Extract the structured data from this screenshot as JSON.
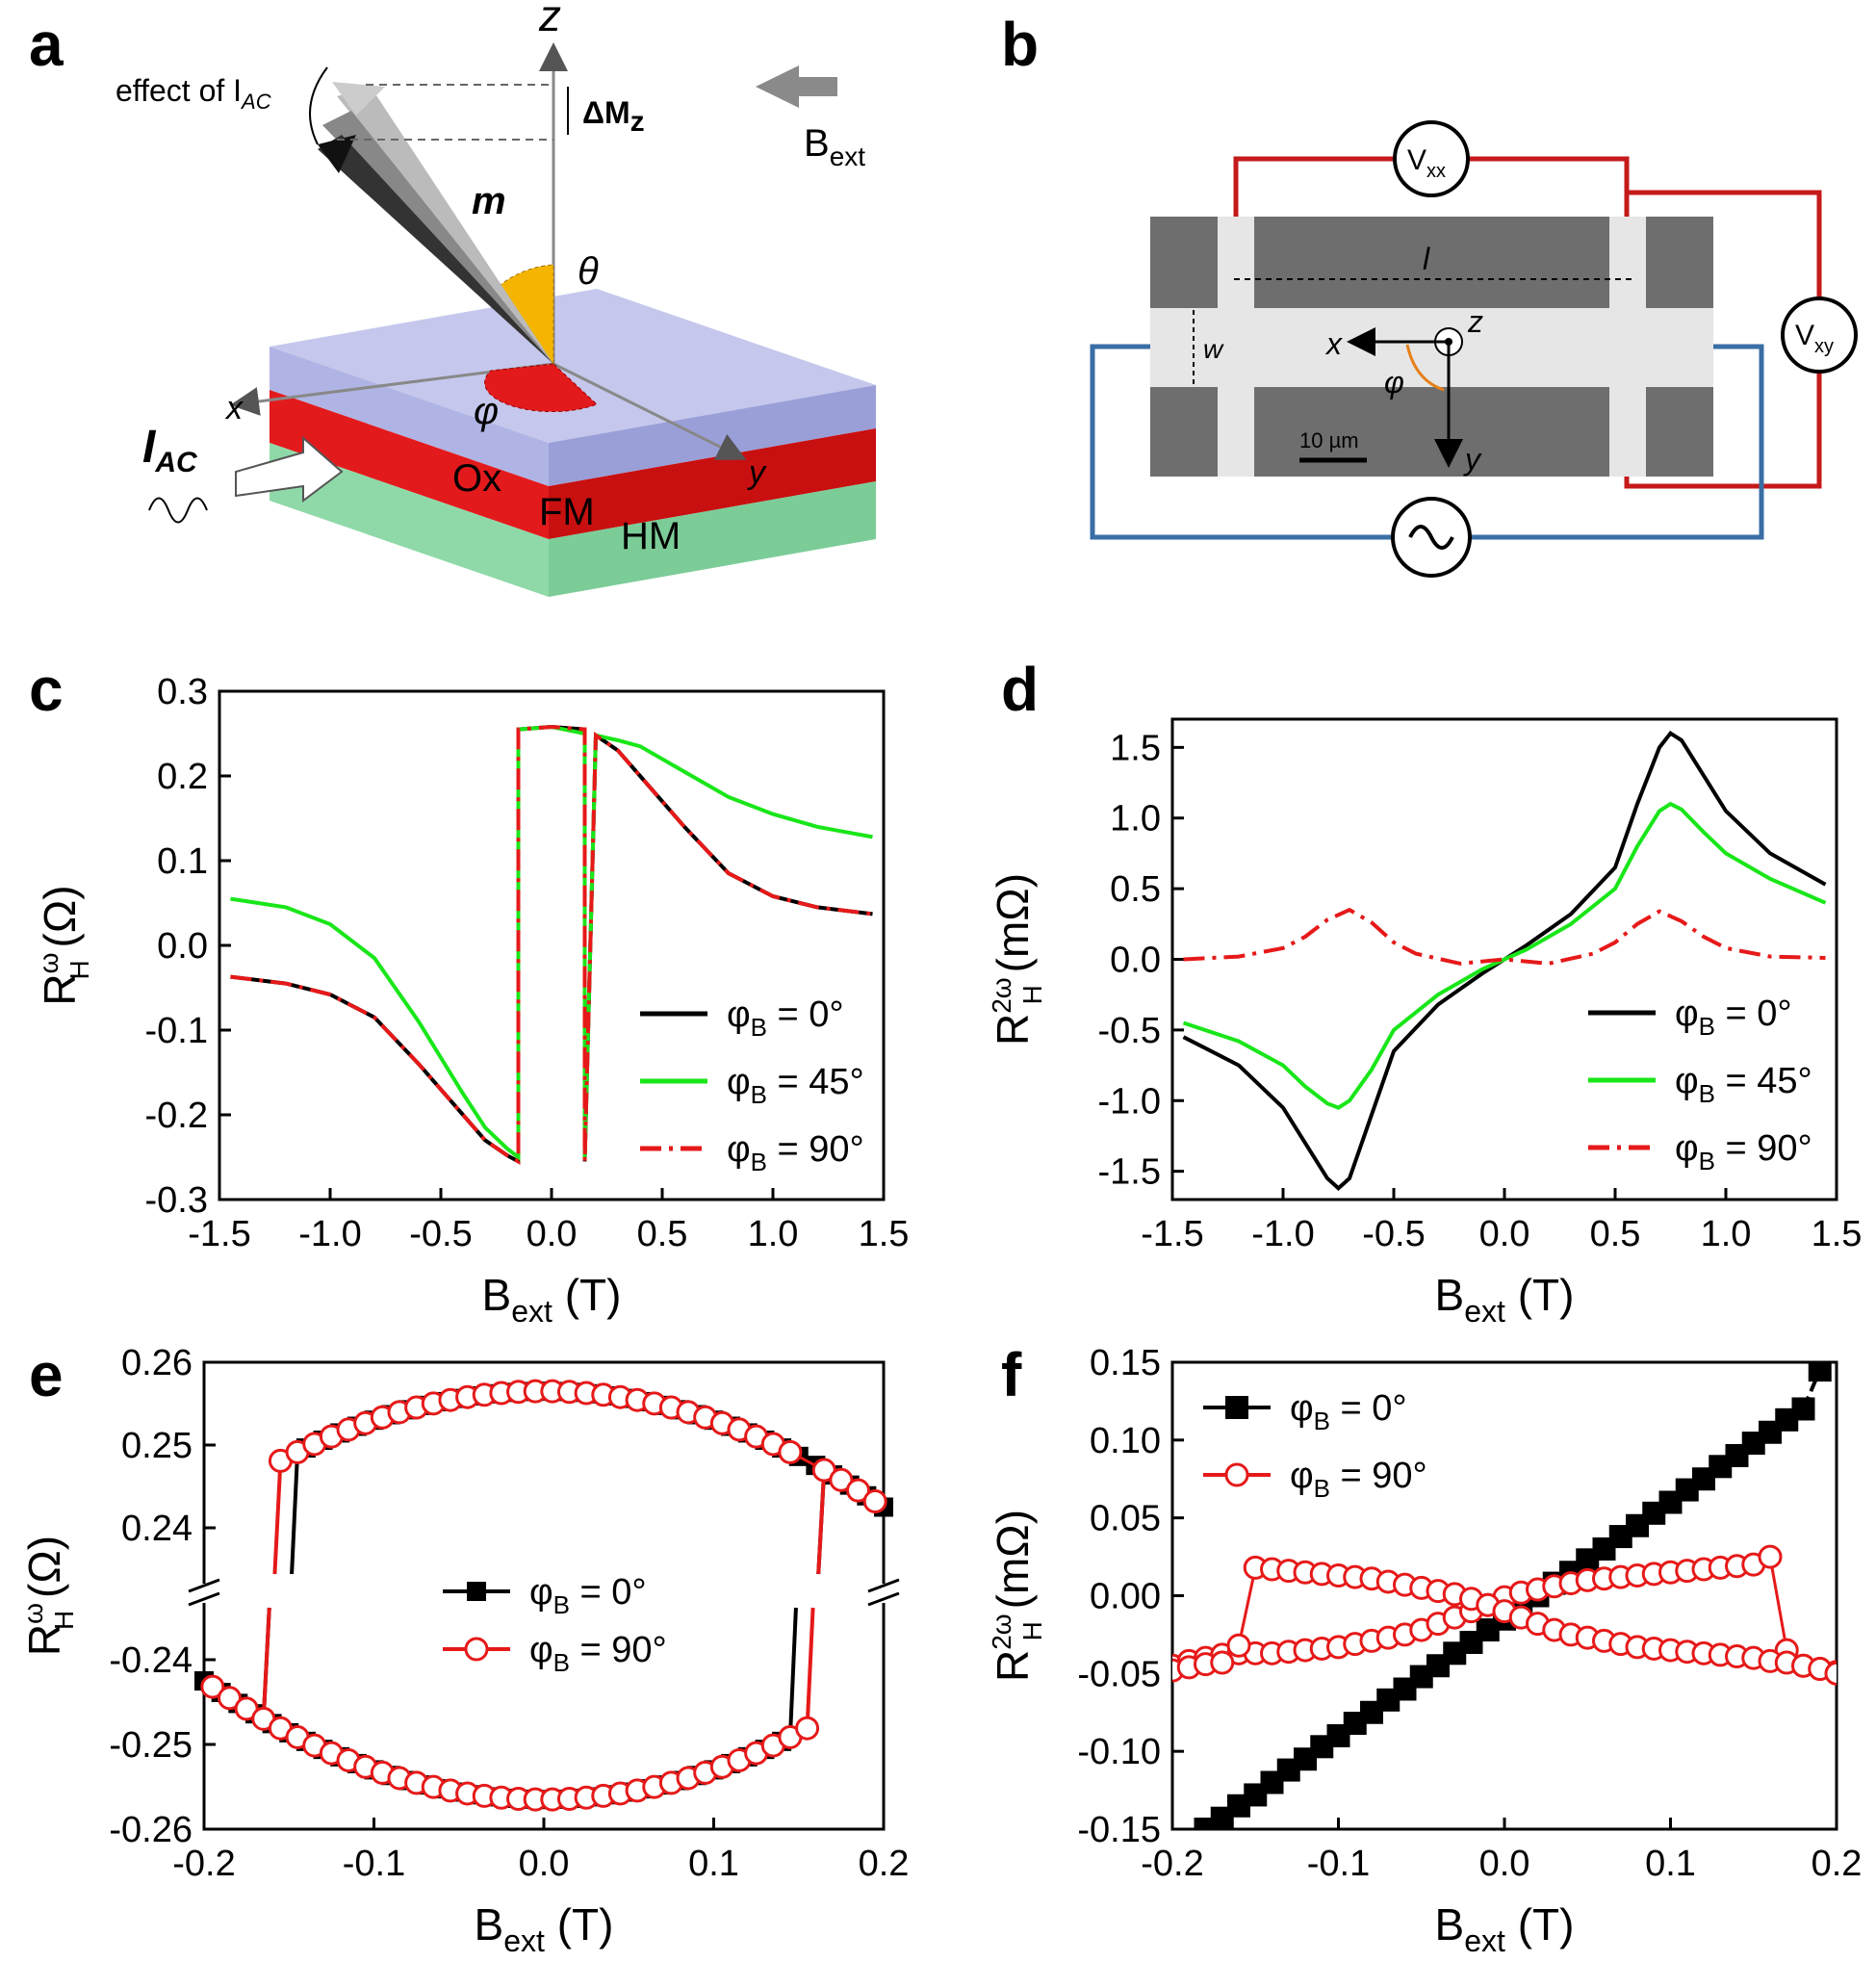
{
  "figure": {
    "panel_labels": [
      "a",
      "b",
      "c",
      "d",
      "e",
      "f"
    ],
    "schematic_a": {
      "z_axis": "z",
      "x_axis": "x",
      "y_axis": "y",
      "effect_label": "effect of I",
      "effect_sub": "AC",
      "delta_m": "ΔM",
      "delta_m_sub": "z",
      "magnetization": "m",
      "theta": "θ",
      "phi": "φ",
      "b_ext": "B",
      "b_ext_sub": "ext",
      "current": "I",
      "current_sub": "AC",
      "layers": [
        "Ox",
        "FM",
        "HM"
      ]
    },
    "device_b": {
      "vxx": "V",
      "vxx_sub": "xx",
      "vxy": "V",
      "vxy_sub": "xy",
      "length": "l",
      "width": "w",
      "x": "x",
      "y": "y",
      "z": "z",
      "phi": "φ",
      "scale_bar": "10 µm",
      "colors": {
        "voltage_wire": "#c41a1a",
        "current_wire": "#3a6ea5",
        "gray": "#6e6e6e",
        "light": "#e6e6e6"
      }
    }
  },
  "chart_data": [
    {
      "panel": "c",
      "type": "line",
      "xlabel": "B",
      "xlabel_sub": "ext",
      "xlabel_unit": "(T)",
      "ylabel": "R",
      "ylabel_sup": "ω",
      "ylabel_sub": "H",
      "ylabel_unit": "(Ω)",
      "xlim": [
        -1.5,
        1.5
      ],
      "ylim": [
        -0.3,
        0.3
      ],
      "xticks": [
        "-1.5",
        "-1.0",
        "-0.5",
        "0.0",
        "0.5",
        "1.0",
        "1.5"
      ],
      "yticks": [
        "-0.3",
        "-0.2",
        "-0.1",
        "0.0",
        "0.1",
        "0.2",
        "0.3"
      ],
      "legend": [
        "φB = 0°",
        "φB = 45°",
        "φB = 90°"
      ],
      "series": [
        {
          "name": "φB = 0°",
          "color": "#000000",
          "style": "solid",
          "x": [
            -1.45,
            -1.2,
            -1.0,
            -0.8,
            -0.6,
            -0.4,
            -0.3,
            -0.2,
            -0.15,
            -0.15,
            0.0,
            0.15,
            0.15,
            0.2,
            0.3,
            0.4,
            0.6,
            0.8,
            1.0,
            1.2,
            1.45
          ],
          "y": [
            -0.037,
            -0.045,
            -0.058,
            -0.085,
            -0.14,
            -0.2,
            -0.23,
            -0.248,
            -0.255,
            0.255,
            0.258,
            0.255,
            -0.255,
            0.248,
            0.23,
            0.2,
            0.14,
            0.085,
            0.058,
            0.045,
            0.037
          ]
        },
        {
          "name": "φB = 45°",
          "color": "#19e619",
          "style": "solid",
          "x": [
            -1.45,
            -1.2,
            -1.0,
            -0.8,
            -0.6,
            -0.4,
            -0.3,
            -0.2,
            -0.15,
            -0.15,
            0.0,
            0.15,
            0.15,
            0.2,
            0.3,
            0.4,
            0.6,
            0.8,
            1.0,
            1.2,
            1.45
          ],
          "y": [
            0.055,
            0.045,
            0.025,
            -0.015,
            -0.09,
            -0.175,
            -0.215,
            -0.24,
            -0.25,
            0.255,
            0.258,
            0.25,
            -0.25,
            0.248,
            0.242,
            0.235,
            0.205,
            0.175,
            0.155,
            0.14,
            0.128
          ]
        },
        {
          "name": "φB = 90°",
          "color": "#e61919",
          "style": "dashdot",
          "x": [
            -1.45,
            -1.2,
            -1.0,
            -0.8,
            -0.6,
            -0.4,
            -0.3,
            -0.2,
            -0.15,
            -0.15,
            0.0,
            0.15,
            0.15,
            0.2,
            0.3,
            0.4,
            0.6,
            0.8,
            1.0,
            1.2,
            1.45
          ],
          "y": [
            -0.037,
            -0.045,
            -0.058,
            -0.085,
            -0.14,
            -0.2,
            -0.23,
            -0.248,
            -0.255,
            0.255,
            0.258,
            0.255,
            -0.255,
            0.248,
            0.23,
            0.2,
            0.14,
            0.085,
            0.058,
            0.045,
            0.037
          ]
        }
      ]
    },
    {
      "panel": "d",
      "type": "line",
      "xlabel": "B",
      "xlabel_sub": "ext",
      "xlabel_unit": "(T)",
      "ylabel": "R",
      "ylabel_sup": "2ω",
      "ylabel_sub": "H",
      "ylabel_unit": "(mΩ)",
      "xlim": [
        -1.5,
        1.5
      ],
      "ylim": [
        -1.7,
        1.7
      ],
      "xticks": [
        "-1.5",
        "-1.0",
        "-0.5",
        "0.0",
        "0.5",
        "1.0",
        "1.5"
      ],
      "yticks": [
        "-1.5",
        "-1.0",
        "-0.5",
        "0.0",
        "0.5",
        "1.0",
        "1.5"
      ],
      "legend": [
        "φB = 0°",
        "φB = 45°",
        "φB = 90°"
      ],
      "series": [
        {
          "name": "φB = 0°",
          "color": "#000000",
          "style": "solid",
          "x": [
            -1.45,
            -1.2,
            -1.0,
            -0.9,
            -0.8,
            -0.75,
            -0.7,
            -0.6,
            -0.5,
            -0.3,
            -0.1,
            0.0,
            0.1,
            0.3,
            0.5,
            0.6,
            0.7,
            0.75,
            0.8,
            0.9,
            1.0,
            1.2,
            1.45
          ],
          "y": [
            -0.55,
            -0.75,
            -1.05,
            -1.3,
            -1.55,
            -1.62,
            -1.55,
            -1.1,
            -0.65,
            -0.32,
            -0.1,
            0.0,
            0.1,
            0.32,
            0.65,
            1.1,
            1.5,
            1.6,
            1.55,
            1.3,
            1.05,
            0.75,
            0.53
          ]
        },
        {
          "name": "φB = 45°",
          "color": "#19e619",
          "style": "solid",
          "x": [
            -1.45,
            -1.2,
            -1.0,
            -0.9,
            -0.8,
            -0.75,
            -0.7,
            -0.6,
            -0.5,
            -0.3,
            -0.1,
            0.0,
            0.1,
            0.3,
            0.5,
            0.6,
            0.7,
            0.75,
            0.8,
            0.9,
            1.0,
            1.2,
            1.45
          ],
          "y": [
            -0.45,
            -0.58,
            -0.75,
            -0.9,
            -1.02,
            -1.05,
            -1.0,
            -0.78,
            -0.5,
            -0.25,
            -0.07,
            0.0,
            0.07,
            0.25,
            0.5,
            0.8,
            1.05,
            1.1,
            1.06,
            0.9,
            0.75,
            0.57,
            0.4
          ]
        },
        {
          "name": "φB = 90°",
          "color": "#e61919",
          "style": "dashdot",
          "x": [
            -1.45,
            -1.2,
            -1.0,
            -0.9,
            -0.8,
            -0.7,
            -0.6,
            -0.5,
            -0.4,
            -0.2,
            0.0,
            0.2,
            0.4,
            0.5,
            0.6,
            0.7,
            0.8,
            0.9,
            1.0,
            1.2,
            1.45
          ],
          "y": [
            0.0,
            0.02,
            0.08,
            0.16,
            0.28,
            0.35,
            0.26,
            0.12,
            0.04,
            -0.03,
            0.0,
            -0.03,
            0.04,
            0.12,
            0.25,
            0.34,
            0.27,
            0.16,
            0.08,
            0.02,
            0.01
          ]
        }
      ]
    },
    {
      "panel": "e",
      "type": "scatter",
      "xlabel": "B",
      "xlabel_sub": "ext",
      "xlabel_unit": "(T)",
      "ylabel": "R",
      "ylabel_sup": "ω",
      "ylabel_sub": "H",
      "ylabel_unit": "(Ω)",
      "xlim": [
        -0.2,
        0.2
      ],
      "ylim_upper": [
        0.235,
        0.26
      ],
      "ylim_lower": [
        -0.26,
        -0.235
      ],
      "xticks": [
        "-0.2",
        "-0.1",
        "0.0",
        "0.1",
        "0.2"
      ],
      "yticks_upper": [
        "0.24",
        "0.25",
        "0.26"
      ],
      "yticks_lower": [
        "-0.26",
        "-0.25",
        "-0.24"
      ],
      "legend": [
        "φB = 0°",
        "φB = 90°"
      ],
      "series": [
        {
          "name": "φB = 0°",
          "color": "#000000",
          "marker": "square-filled",
          "upper_x": [
            -0.14,
            -0.13,
            -0.12,
            -0.11,
            -0.1,
            -0.09,
            -0.08,
            -0.07,
            -0.06,
            -0.05,
            -0.04,
            -0.03,
            -0.02,
            -0.01,
            0.0,
            0.01,
            0.02,
            0.03,
            0.04,
            0.05,
            0.06,
            0.07,
            0.08,
            0.09,
            0.1,
            0.11,
            0.12,
            0.13,
            0.14,
            0.15,
            0.16,
            0.17,
            0.18,
            0.19,
            0.2
          ],
          "lower_x": [
            -0.2,
            -0.19,
            -0.18,
            -0.17,
            -0.16,
            -0.15,
            -0.14,
            -0.13,
            -0.12,
            -0.11,
            -0.1,
            -0.09,
            -0.08,
            -0.07,
            -0.06,
            -0.05,
            -0.04,
            -0.03,
            -0.02,
            -0.01,
            0.0,
            0.01,
            0.02,
            0.03,
            0.04,
            0.05,
            0.06,
            0.07,
            0.08,
            0.09,
            0.1,
            0.11,
            0.12,
            0.13,
            0.14
          ],
          "switch_neg": [
            -0.165,
            -0.145
          ],
          "switch_pos": [
            0.145,
            0.165
          ]
        },
        {
          "name": "φB = 90°",
          "color": "#e61919",
          "marker": "circle-open",
          "upper_x": [
            -0.155,
            -0.145,
            -0.135,
            -0.125,
            -0.115,
            -0.105,
            -0.095,
            -0.085,
            -0.075,
            -0.065,
            -0.055,
            -0.045,
            -0.035,
            -0.025,
            -0.015,
            -0.005,
            0.005,
            0.015,
            0.025,
            0.035,
            0.045,
            0.055,
            0.065,
            0.075,
            0.085,
            0.095,
            0.105,
            0.115,
            0.125,
            0.135,
            0.145,
            0.165,
            0.175,
            0.185,
            0.195
          ],
          "lower_x": [
            -0.195,
            -0.185,
            -0.175,
            -0.165,
            -0.155,
            -0.145,
            -0.135,
            -0.125,
            -0.115,
            -0.105,
            -0.095,
            -0.085,
            -0.075,
            -0.065,
            -0.055,
            -0.045,
            -0.035,
            -0.025,
            -0.015,
            -0.005,
            0.005,
            0.015,
            0.025,
            0.035,
            0.045,
            0.055,
            0.065,
            0.075,
            0.085,
            0.095,
            0.105,
            0.115,
            0.125,
            0.135,
            0.145,
            0.155
          ],
          "switch_neg": [
            -0.165,
            -0.155
          ],
          "switch_pos": [
            0.155,
            0.165
          ]
        }
      ],
      "model": {
        "amplitude_at_zero": 0.2565,
        "curvature": 0.35
      }
    },
    {
      "panel": "f",
      "type": "scatter",
      "xlabel": "B",
      "xlabel_sub": "ext",
      "xlabel_unit": "(T)",
      "ylabel": "R",
      "ylabel_sup": "2ω",
      "ylabel_sub": "H",
      "ylabel_unit": "(mΩ)",
      "xlim": [
        -0.2,
        0.2
      ],
      "ylim": [
        -0.15,
        0.15
      ],
      "xticks": [
        "-0.2",
        "-0.1",
        "0.0",
        "0.1",
        "0.2"
      ],
      "yticks": [
        "-0.15",
        "-0.10",
        "-0.05",
        "0.00",
        "0.05",
        "0.10",
        "0.15"
      ],
      "legend": [
        "φB = 0°",
        "φB = 90°"
      ],
      "series": [
        {
          "name": "φB = 0°",
          "color": "#000000",
          "marker": "square-filled",
          "x": [
            -0.19,
            -0.18,
            -0.17,
            -0.16,
            -0.15,
            -0.14,
            -0.13,
            -0.12,
            -0.11,
            -0.1,
            -0.09,
            -0.08,
            -0.07,
            -0.06,
            -0.05,
            -0.04,
            -0.03,
            -0.02,
            -0.01,
            0.0,
            0.01,
            0.02,
            0.03,
            0.04,
            0.05,
            0.06,
            0.07,
            0.08,
            0.09,
            0.1,
            0.11,
            0.12,
            0.13,
            0.14,
            0.15,
            0.16,
            0.17,
            0.18,
            0.19
          ],
          "y": [
            -0.157,
            -0.15,
            -0.143,
            -0.135,
            -0.128,
            -0.12,
            -0.112,
            -0.105,
            -0.097,
            -0.09,
            -0.082,
            -0.075,
            -0.067,
            -0.06,
            -0.052,
            -0.045,
            -0.037,
            -0.03,
            -0.022,
            -0.015,
            -0.007,
            0.0,
            0.008,
            0.015,
            0.023,
            0.03,
            0.038,
            0.045,
            0.053,
            0.06,
            0.068,
            0.075,
            0.083,
            0.09,
            0.098,
            0.105,
            0.113,
            0.12,
            0.145
          ]
        },
        {
          "name": "φB = 90°",
          "color": "#e61919",
          "marker": "circle-open",
          "x": [
            -0.2,
            -0.19,
            -0.18,
            -0.17,
            -0.16,
            -0.15,
            -0.14,
            -0.13,
            -0.12,
            -0.11,
            -0.1,
            -0.09,
            -0.08,
            -0.07,
            -0.06,
            -0.05,
            -0.04,
            -0.03,
            -0.02,
            -0.01,
            0.0,
            0.01,
            0.02,
            0.03,
            0.04,
            0.05,
            0.06,
            0.07,
            0.08,
            0.09,
            0.1,
            0.11,
            0.12,
            0.13,
            0.14,
            0.15,
            0.16,
            0.17,
            0.18,
            0.19,
            0.2
          ],
          "y_sweep_up": [
            -0.045,
            -0.042,
            -0.04,
            -0.038,
            -0.037,
            -0.037,
            -0.037,
            -0.036,
            -0.035,
            -0.034,
            -0.033,
            -0.031,
            -0.029,
            -0.027,
            -0.025,
            -0.022,
            -0.018,
            -0.014,
            -0.01,
            -0.006,
            -0.001,
            0.002,
            0.004,
            0.006,
            0.008,
            0.01,
            0.011,
            0.012,
            0.013,
            0.014,
            0.015,
            0.016,
            0.017,
            0.018,
            0.019,
            0.02,
            0.025,
            -0.035,
            -0.045,
            -0.047,
            -0.049
          ],
          "y_sweep_down": [
            -0.048,
            -0.046,
            -0.044,
            -0.043,
            -0.032,
            0.018,
            0.017,
            0.016,
            0.015,
            0.014,
            0.013,
            0.012,
            0.011,
            0.009,
            0.007,
            0.005,
            0.003,
            0.001,
            -0.002,
            -0.006,
            -0.01,
            -0.014,
            -0.018,
            -0.022,
            -0.025,
            -0.027,
            -0.029,
            -0.031,
            -0.033,
            -0.034,
            -0.035,
            -0.036,
            -0.037,
            -0.038,
            -0.039,
            -0.04,
            -0.042,
            -0.043,
            -0.045,
            -0.047,
            -0.05
          ]
        }
      ]
    }
  ]
}
